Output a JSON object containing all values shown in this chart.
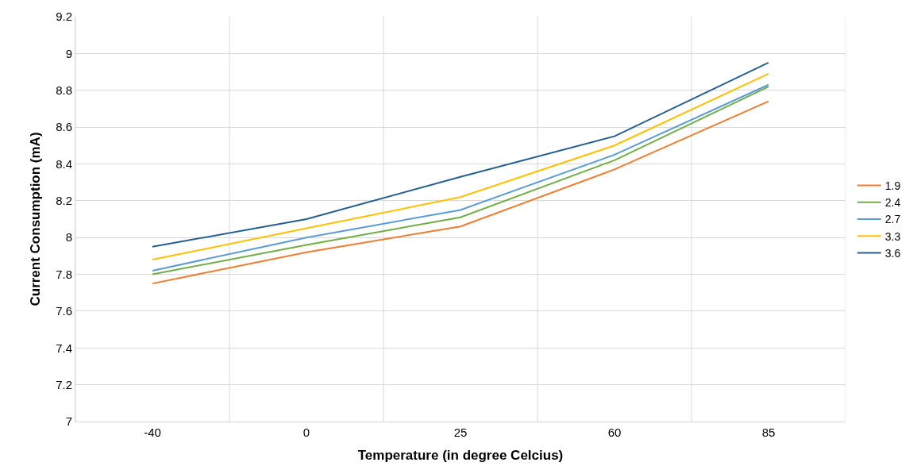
{
  "chart_data": {
    "type": "line",
    "xlabel": "Temperature (in degree Celcius)",
    "ylabel": "Current Consumption (mA)",
    "categories": [
      "-40",
      "0",
      "25",
      "60",
      "85"
    ],
    "series": [
      {
        "name": "1.9",
        "color": "#ed7d31",
        "values": [
          7.75,
          7.92,
          8.06,
          8.37,
          8.74
        ]
      },
      {
        "name": "2.4",
        "color": "#70ad47",
        "values": [
          7.8,
          7.96,
          8.11,
          8.42,
          8.82
        ]
      },
      {
        "name": "2.7",
        "color": "#5b9bd5",
        "values": [
          7.82,
          8.0,
          8.15,
          8.45,
          8.83
        ]
      },
      {
        "name": "3.3",
        "color": "#ffc000",
        "values": [
          7.88,
          8.05,
          8.22,
          8.5,
          8.89
        ]
      },
      {
        "name": "3.6",
        "color": "#255e91",
        "values": [
          7.95,
          8.1,
          8.33,
          8.55,
          8.95
        ]
      }
    ],
    "ylim": [
      7,
      9.2
    ],
    "yticks": [
      7,
      7.2,
      7.4,
      7.6,
      7.8,
      8,
      8.2,
      8.4,
      8.6,
      8.8,
      9,
      9.2
    ],
    "grid": true,
    "legend": "right",
    "marker": "none",
    "line_style": "solid"
  }
}
